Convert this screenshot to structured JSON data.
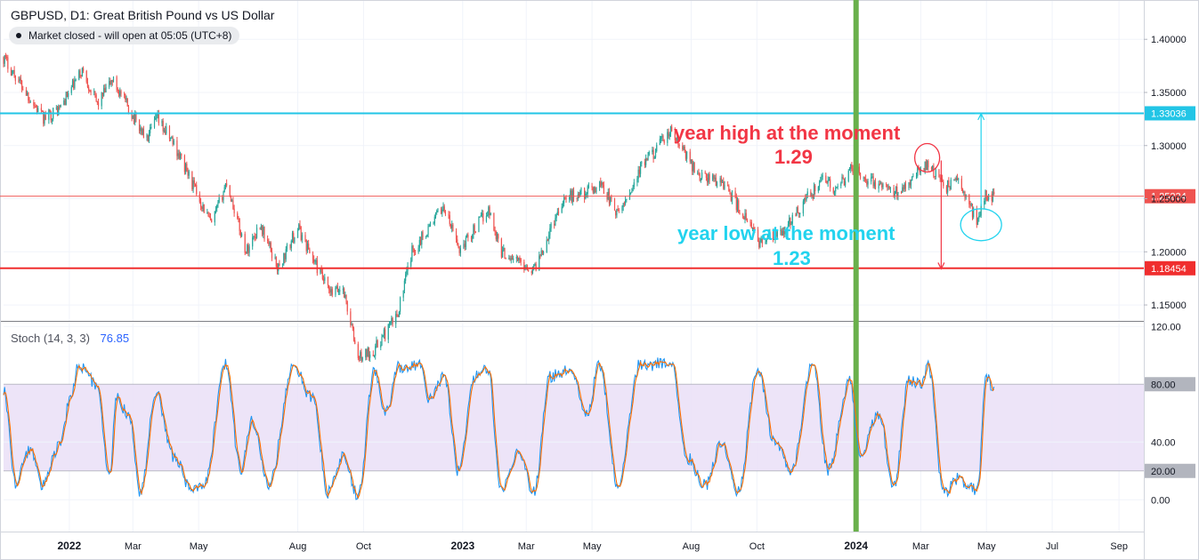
{
  "header": {
    "title": "GBPUSD, D1: Great British Pound vs US Dollar",
    "status": "Market closed - will open at 05:05 (UTC+8)"
  },
  "colors": {
    "up": "#26a69a",
    "down": "#ef5350",
    "cyan_level": "#22c5e6",
    "red_level": "#f02e2e",
    "current_price": "#ef5350",
    "vertical_marker": "#6ab04c",
    "stoch_k": "#2196f3",
    "stoch_d": "#ff6d00",
    "stoch_band": "#eadff7"
  },
  "annotations": {
    "high_text": "year high at the moment",
    "high_value": "1.29",
    "low_text": "year low at the moment",
    "low_value": "1.23"
  },
  "chart_data": [
    {
      "type": "candlestick",
      "symbol": "GBPUSD",
      "timeframe": "D1",
      "y_ticks": [
        1.15,
        1.2,
        1.25,
        1.3,
        1.35,
        1.4
      ],
      "y_tick_labels": [
        "1.15000",
        "1.20000",
        "1.25000",
        "1.30000",
        "1.35000",
        "1.40000"
      ],
      "ylim": [
        1.135,
        1.437
      ],
      "x_tick_labels": [
        "2022",
        "Mar",
        "May",
        "Aug",
        "Oct",
        "2023",
        "Mar",
        "May",
        "Aug",
        "Oct",
        "2024",
        "Mar",
        "May",
        "Jul",
        "Sep"
      ],
      "x_tick_dates": [
        "2022-01-01",
        "2022-03-01",
        "2022-05-01",
        "2022-08-01",
        "2022-10-01",
        "2023-01-01",
        "2023-03-01",
        "2023-05-01",
        "2023-08-01",
        "2023-10-01",
        "2024-01-01",
        "2024-03-01",
        "2024-05-01",
        "2024-07-01",
        "2024-09-01"
      ],
      "x_bold_labels": [
        "2022",
        "2023",
        "2024"
      ],
      "xlim": [
        "2021-11-01",
        "2024-09-24"
      ],
      "close_path": [
        {
          "date": "2021-11-01",
          "close": 1.383
        },
        {
          "date": "2021-12-08",
          "close": 1.325
        },
        {
          "date": "2021-12-23",
          "close": 1.335
        },
        {
          "date": "2022-01-13",
          "close": 1.371
        },
        {
          "date": "2022-01-27",
          "close": 1.339
        },
        {
          "date": "2022-02-10",
          "close": 1.362
        },
        {
          "date": "2022-03-14",
          "close": 1.305
        },
        {
          "date": "2022-03-23",
          "close": 1.325
        },
        {
          "date": "2022-04-08",
          "close": 1.302
        },
        {
          "date": "2022-05-13",
          "close": 1.225
        },
        {
          "date": "2022-05-27",
          "close": 1.266
        },
        {
          "date": "2022-06-14",
          "close": 1.2
        },
        {
          "date": "2022-06-27",
          "close": 1.226
        },
        {
          "date": "2022-07-14",
          "close": 1.184
        },
        {
          "date": "2022-08-01",
          "close": 1.223
        },
        {
          "date": "2022-08-31",
          "close": 1.16
        },
        {
          "date": "2022-09-12",
          "close": 1.166
        },
        {
          "date": "2022-09-26",
          "close": 1.1
        },
        {
          "date": "2022-10-11",
          "close": 1.108
        },
        {
          "date": "2022-11-01",
          "close": 1.14
        },
        {
          "date": "2022-11-15",
          "close": 1.2
        },
        {
          "date": "2022-12-14",
          "close": 1.243
        },
        {
          "date": "2022-12-29",
          "close": 1.202
        },
        {
          "date": "2023-01-25",
          "close": 1.24
        },
        {
          "date": "2023-02-06",
          "close": 1.2
        },
        {
          "date": "2023-03-08",
          "close": 1.183
        },
        {
          "date": "2023-04-04",
          "close": 1.25
        },
        {
          "date": "2023-04-28",
          "close": 1.257
        },
        {
          "date": "2023-05-10",
          "close": 1.264
        },
        {
          "date": "2023-05-25",
          "close": 1.234
        },
        {
          "date": "2023-06-16",
          "close": 1.28
        },
        {
          "date": "2023-07-13",
          "close": 1.313
        },
        {
          "date": "2023-08-08",
          "close": 1.272
        },
        {
          "date": "2023-08-31",
          "close": 1.265
        },
        {
          "date": "2023-10-03",
          "close": 1.21
        },
        {
          "date": "2023-10-24",
          "close": 1.216
        },
        {
          "date": "2023-11-14",
          "close": 1.248
        },
        {
          "date": "2023-12-04",
          "close": 1.27
        },
        {
          "date": "2023-12-13",
          "close": 1.255
        },
        {
          "date": "2023-12-28",
          "close": 1.279
        },
        {
          "date": "2024-01-17",
          "close": 1.265
        },
        {
          "date": "2024-02-06",
          "close": 1.255
        },
        {
          "date": "2024-03-08",
          "close": 1.285
        },
        {
          "date": "2024-03-22",
          "close": 1.26
        },
        {
          "date": "2024-04-04",
          "close": 1.268
        },
        {
          "date": "2024-04-22",
          "close": 1.23
        },
        {
          "date": "2024-05-01",
          "close": 1.255
        },
        {
          "date": "2024-05-08",
          "close": 1.2523
        }
      ],
      "horizontal_levels": [
        {
          "value": 1.33036,
          "label": "1.33036",
          "role": "cyan"
        },
        {
          "value": 1.25234,
          "label": "1.25234",
          "role": "current"
        },
        {
          "value": 1.18454,
          "label": "1.18454",
          "role": "red"
        }
      ],
      "vertical_marker_date": "2024-01-01",
      "annotation_circles": [
        {
          "date": "2024-03-07",
          "price": 1.2885,
          "color": "#f23645"
        },
        {
          "date": "2024-04-26",
          "price": 1.2255,
          "color": "#22d3ee"
        }
      ],
      "annotation_arrows": [
        {
          "date": "2024-03-20",
          "from": 1.286,
          "to": 1.184,
          "color": "#f23645"
        },
        {
          "date": "2024-04-26",
          "from": 1.243,
          "to": 1.33,
          "color": "#22d3ee"
        }
      ]
    },
    {
      "type": "line",
      "indicator": "Stoch",
      "params": "(14, 3, 3)",
      "current_value": "76.85",
      "ylim": [
        -22,
        122
      ],
      "y_ticks": [
        0,
        20,
        40,
        80,
        120
      ],
      "y_tick_labels": [
        "0.00",
        "20.00",
        "40.00",
        "80.00",
        "120.00"
      ],
      "band": [
        20,
        80
      ],
      "series": [
        {
          "role": "k",
          "color": "#2196f3"
        },
        {
          "role": "d",
          "color": "#ff6d00"
        }
      ],
      "key_points": [
        {
          "date": "2021-11-01",
          "value": 77
        },
        {
          "date": "2021-11-12",
          "value": 12
        },
        {
          "date": "2021-11-26",
          "value": 35
        },
        {
          "date": "2021-12-07",
          "value": 10
        },
        {
          "date": "2021-12-24",
          "value": 40
        },
        {
          "date": "2022-01-03",
          "value": 75
        },
        {
          "date": "2022-01-10",
          "value": 93
        },
        {
          "date": "2022-01-27",
          "value": 80
        },
        {
          "date": "2022-02-07",
          "value": 15
        },
        {
          "date": "2022-02-14",
          "value": 70
        },
        {
          "date": "2022-02-25",
          "value": 60
        },
        {
          "date": "2022-03-08",
          "value": 5
        },
        {
          "date": "2022-03-22",
          "value": 75
        },
        {
          "date": "2022-04-08",
          "value": 30
        },
        {
          "date": "2022-04-25",
          "value": 5
        },
        {
          "date": "2022-05-06",
          "value": 10
        },
        {
          "date": "2022-05-26",
          "value": 93
        },
        {
          "date": "2022-06-09",
          "value": 20
        },
        {
          "date": "2022-06-20",
          "value": 55
        },
        {
          "date": "2022-07-05",
          "value": 10
        },
        {
          "date": "2022-07-28",
          "value": 92
        },
        {
          "date": "2022-08-15",
          "value": 70
        },
        {
          "date": "2022-08-29",
          "value": 5
        },
        {
          "date": "2022-09-12",
          "value": 30
        },
        {
          "date": "2022-09-26",
          "value": 3
        },
        {
          "date": "2022-10-11",
          "value": 90
        },
        {
          "date": "2022-10-21",
          "value": 60
        },
        {
          "date": "2022-11-03",
          "value": 92
        },
        {
          "date": "2022-11-22",
          "value": 94
        },
        {
          "date": "2022-12-01",
          "value": 70
        },
        {
          "date": "2022-12-15",
          "value": 85
        },
        {
          "date": "2022-12-28",
          "value": 20
        },
        {
          "date": "2023-01-12",
          "value": 85
        },
        {
          "date": "2023-01-24",
          "value": 91
        },
        {
          "date": "2023-02-06",
          "value": 5
        },
        {
          "date": "2023-02-22",
          "value": 35
        },
        {
          "date": "2023-03-08",
          "value": 5
        },
        {
          "date": "2023-03-23",
          "value": 85
        },
        {
          "date": "2023-04-10",
          "value": 90
        },
        {
          "date": "2023-04-26",
          "value": 60
        },
        {
          "date": "2023-05-08",
          "value": 93
        },
        {
          "date": "2023-05-25",
          "value": 10
        },
        {
          "date": "2023-06-14",
          "value": 93
        },
        {
          "date": "2023-07-14",
          "value": 95
        },
        {
          "date": "2023-07-27",
          "value": 30
        },
        {
          "date": "2023-08-14",
          "value": 10
        },
        {
          "date": "2023-08-30",
          "value": 40
        },
        {
          "date": "2023-09-13",
          "value": 5
        },
        {
          "date": "2023-10-02",
          "value": 90
        },
        {
          "date": "2023-10-17",
          "value": 40
        },
        {
          "date": "2023-11-02",
          "value": 20
        },
        {
          "date": "2023-11-22",
          "value": 95
        },
        {
          "date": "2023-12-06",
          "value": 20
        },
        {
          "date": "2023-12-26",
          "value": 82
        },
        {
          "date": "2024-01-05",
          "value": 30
        },
        {
          "date": "2024-01-22",
          "value": 60
        },
        {
          "date": "2024-02-05",
          "value": 10
        },
        {
          "date": "2024-02-19",
          "value": 82
        },
        {
          "date": "2024-03-01",
          "value": 80
        },
        {
          "date": "2024-03-08",
          "value": 92
        },
        {
          "date": "2024-03-22",
          "value": 5
        },
        {
          "date": "2024-04-05",
          "value": 15
        },
        {
          "date": "2024-04-16",
          "value": 10
        },
        {
          "date": "2024-04-22",
          "value": 5
        },
        {
          "date": "2024-05-01",
          "value": 85
        },
        {
          "date": "2024-05-08",
          "value": 76.85
        }
      ]
    }
  ]
}
